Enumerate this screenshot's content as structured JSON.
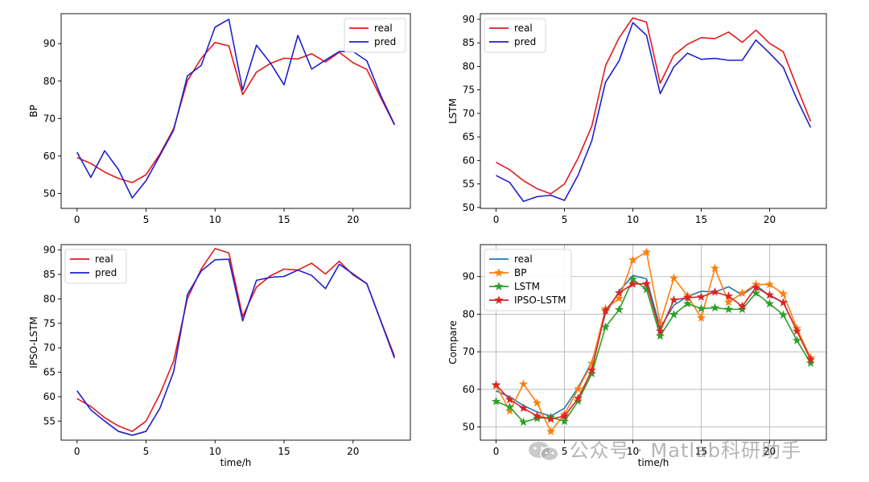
{
  "x": [
    0,
    1,
    2,
    3,
    4,
    5,
    6,
    7,
    8,
    9,
    10,
    11,
    12,
    13,
    14,
    15,
    16,
    17,
    18,
    19,
    20,
    21,
    22,
    23
  ],
  "colors": {
    "real": "#e41a1c",
    "pred": "#1f1fcf",
    "c_real": "#1f77b4",
    "c_bp": "#ff7f0e",
    "c_lstm": "#2ca02c",
    "c_ipso": "#d62728"
  },
  "xlabel": "time/h",
  "charts": [
    {
      "ylabel": "BP",
      "ylim": [
        46,
        98
      ],
      "yticks": [
        50,
        60,
        70,
        80,
        90
      ],
      "xticks": [
        0,
        5,
        10,
        15,
        20
      ],
      "legend": [
        "real",
        "pred"
      ],
      "series": [
        {
          "name": "real",
          "color_key": "real",
          "markers": false,
          "values": [
            59.6,
            58.0,
            55.7,
            54.0,
            52.9,
            55.0,
            60.5,
            67.3,
            80.1,
            86.1,
            90.3,
            89.4,
            76.4,
            82.4,
            84.7,
            86.1,
            85.9,
            87.3,
            85.1,
            87.7,
            84.9,
            83.1,
            75.6,
            68.3
          ]
        },
        {
          "name": "pred",
          "color_key": "pred",
          "markers": false,
          "values": [
            61.0,
            54.3,
            61.4,
            56.4,
            48.8,
            53.4,
            60.1,
            66.9,
            81.4,
            84.2,
            94.4,
            96.5,
            77.6,
            89.6,
            84.9,
            79.0,
            92.2,
            83.2,
            85.6,
            87.9,
            87.9,
            85.4,
            76.2,
            68.4
          ]
        }
      ]
    },
    {
      "ylabel": "LSTM",
      "ylim": [
        49.8,
        91.2
      ],
      "yticks": [
        50,
        55,
        60,
        65,
        70,
        75,
        80,
        85,
        90
      ],
      "xticks": [
        0,
        5,
        10,
        15,
        20
      ],
      "legend": [
        "real",
        "pred"
      ],
      "series": [
        {
          "name": "real",
          "color_key": "real",
          "markers": false,
          "values": [
            59.6,
            58.0,
            55.7,
            54.0,
            52.9,
            55.0,
            60.5,
            67.3,
            80.1,
            86.1,
            90.3,
            89.4,
            76.4,
            82.4,
            84.7,
            86.1,
            85.9,
            87.3,
            85.1,
            87.7,
            84.9,
            83.1,
            75.6,
            68.3
          ]
        },
        {
          "name": "pred",
          "color_key": "pred",
          "markers": false,
          "values": [
            56.8,
            55.3,
            51.3,
            52.3,
            52.6,
            51.5,
            56.9,
            64.2,
            76.6,
            81.2,
            89.3,
            86.6,
            74.2,
            79.9,
            82.8,
            81.5,
            81.7,
            81.3,
            81.3,
            85.6,
            82.8,
            79.8,
            73.0,
            67.0
          ]
        }
      ]
    },
    {
      "ylabel": "IPSO-LSTM",
      "ylim": [
        51.1,
        91.1
      ],
      "yticks": [
        55,
        60,
        65,
        70,
        75,
        80,
        85,
        90
      ],
      "xticks": [
        0,
        5,
        10,
        15,
        20
      ],
      "legend": [
        "real",
        "pred"
      ],
      "series": [
        {
          "name": "real",
          "color_key": "real",
          "markers": false,
          "values": [
            59.6,
            58.0,
            55.7,
            54.0,
            52.9,
            55.0,
            60.5,
            67.3,
            80.1,
            86.1,
            90.3,
            89.4,
            76.4,
            82.4,
            84.7,
            86.1,
            85.9,
            87.3,
            85.1,
            87.7,
            84.9,
            83.1,
            75.6,
            68.3
          ]
        },
        {
          "name": "pred",
          "color_key": "pred",
          "markers": false,
          "values": [
            61.2,
            57.3,
            55.0,
            52.9,
            52.1,
            52.9,
            57.6,
            65.1,
            80.9,
            85.7,
            88.0,
            88.1,
            75.5,
            83.8,
            84.4,
            84.6,
            85.9,
            84.8,
            82.1,
            87.1,
            85.1,
            83.1,
            75.5,
            67.9
          ]
        }
      ]
    },
    {
      "ylabel": "Compare",
      "ylim": [
        46.5,
        98.5
      ],
      "yticks": [
        50,
        60,
        70,
        80,
        90
      ],
      "xticks": [
        0,
        5,
        10,
        15,
        20
      ],
      "grid": true,
      "legend": [
        "real",
        "BP",
        "LSTM",
        "IPSO-LSTM"
      ],
      "series": [
        {
          "name": "real",
          "color_key": "c_real",
          "markers": false,
          "values": [
            59.6,
            58.0,
            55.7,
            54.0,
            52.9,
            55.0,
            60.5,
            67.3,
            80.1,
            86.1,
            90.3,
            89.4,
            76.4,
            82.4,
            84.7,
            86.1,
            85.9,
            87.3,
            85.1,
            87.7,
            84.9,
            83.1,
            75.6,
            68.3
          ]
        },
        {
          "name": "BP",
          "color_key": "c_bp",
          "markers": true,
          "values": [
            61.0,
            54.3,
            61.4,
            56.4,
            48.8,
            53.4,
            60.1,
            66.9,
            81.4,
            84.2,
            94.4,
            96.5,
            77.6,
            89.6,
            84.9,
            79.0,
            92.2,
            83.2,
            85.6,
            87.9,
            87.9,
            85.4,
            76.2,
            68.4
          ]
        },
        {
          "name": "LSTM",
          "color_key": "c_lstm",
          "markers": true,
          "values": [
            56.8,
            55.3,
            51.3,
            52.3,
            52.6,
            51.5,
            56.9,
            64.2,
            76.6,
            81.2,
            89.3,
            86.6,
            74.2,
            79.9,
            82.8,
            81.5,
            81.7,
            81.3,
            81.3,
            85.6,
            82.8,
            79.8,
            73.0,
            67.0
          ]
        },
        {
          "name": "IPSO-LSTM",
          "color_key": "c_ipso",
          "markers": true,
          "values": [
            61.2,
            57.3,
            55.0,
            52.9,
            52.1,
            52.9,
            57.6,
            65.1,
            80.9,
            85.7,
            88.0,
            88.1,
            75.5,
            83.8,
            84.4,
            84.6,
            85.9,
            84.8,
            82.1,
            87.1,
            85.1,
            83.1,
            75.5,
            67.9
          ]
        }
      ]
    }
  ],
  "watermark": "公众号 · Matlab科研助手",
  "chart_data": [
    {
      "type": "line",
      "title": "",
      "xlabel": "",
      "ylabel": "BP",
      "ylim": [
        46,
        98
      ],
      "x": [
        0,
        1,
        2,
        3,
        4,
        5,
        6,
        7,
        8,
        9,
        10,
        11,
        12,
        13,
        14,
        15,
        16,
        17,
        18,
        19,
        20,
        21,
        22,
        23
      ],
      "series": [
        {
          "name": "real",
          "values": [
            59.6,
            58.0,
            55.7,
            54.0,
            52.9,
            55.0,
            60.5,
            67.3,
            80.1,
            86.1,
            90.3,
            89.4,
            76.4,
            82.4,
            84.7,
            86.1,
            85.9,
            87.3,
            85.1,
            87.7,
            84.9,
            83.1,
            75.6,
            68.3
          ]
        },
        {
          "name": "pred",
          "values": [
            61.0,
            54.3,
            61.4,
            56.4,
            48.8,
            53.4,
            60.1,
            66.9,
            81.4,
            84.2,
            94.4,
            96.5,
            77.6,
            89.6,
            84.9,
            79.0,
            92.2,
            83.2,
            85.6,
            87.9,
            87.9,
            85.4,
            76.2,
            68.4
          ]
        }
      ]
    },
    {
      "type": "line",
      "title": "",
      "xlabel": "",
      "ylabel": "LSTM",
      "ylim": [
        49.8,
        91.2
      ],
      "x": [
        0,
        1,
        2,
        3,
        4,
        5,
        6,
        7,
        8,
        9,
        10,
        11,
        12,
        13,
        14,
        15,
        16,
        17,
        18,
        19,
        20,
        21,
        22,
        23
      ],
      "series": [
        {
          "name": "real",
          "values": [
            59.6,
            58.0,
            55.7,
            54.0,
            52.9,
            55.0,
            60.5,
            67.3,
            80.1,
            86.1,
            90.3,
            89.4,
            76.4,
            82.4,
            84.7,
            86.1,
            85.9,
            87.3,
            85.1,
            87.7,
            84.9,
            83.1,
            75.6,
            68.3
          ]
        },
        {
          "name": "pred",
          "values": [
            56.8,
            55.3,
            51.3,
            52.3,
            52.6,
            51.5,
            56.9,
            64.2,
            76.6,
            81.2,
            89.3,
            86.6,
            74.2,
            79.9,
            82.8,
            81.5,
            81.7,
            81.3,
            81.3,
            85.6,
            82.8,
            79.8,
            73.0,
            67.0
          ]
        }
      ]
    },
    {
      "type": "line",
      "title": "",
      "xlabel": "time/h",
      "ylabel": "IPSO-LSTM",
      "ylim": [
        51.1,
        91.1
      ],
      "x": [
        0,
        1,
        2,
        3,
        4,
        5,
        6,
        7,
        8,
        9,
        10,
        11,
        12,
        13,
        14,
        15,
        16,
        17,
        18,
        19,
        20,
        21,
        22,
        23
      ],
      "series": [
        {
          "name": "real",
          "values": [
            59.6,
            58.0,
            55.7,
            54.0,
            52.9,
            55.0,
            60.5,
            67.3,
            80.1,
            86.1,
            90.3,
            89.4,
            76.4,
            82.4,
            84.7,
            86.1,
            85.9,
            87.3,
            85.1,
            87.7,
            84.9,
            83.1,
            75.6,
            68.3
          ]
        },
        {
          "name": "pred",
          "values": [
            61.2,
            57.3,
            55.0,
            52.9,
            52.1,
            52.9,
            57.6,
            65.1,
            80.9,
            85.7,
            88.0,
            88.1,
            75.5,
            83.8,
            84.4,
            84.6,
            85.9,
            84.8,
            82.1,
            87.1,
            85.1,
            83.1,
            75.5,
            67.9
          ]
        }
      ]
    },
    {
      "type": "line",
      "title": "",
      "xlabel": "time/h",
      "ylabel": "Compare",
      "ylim": [
        46.5,
        98.5
      ],
      "grid": true,
      "x": [
        0,
        1,
        2,
        3,
        4,
        5,
        6,
        7,
        8,
        9,
        10,
        11,
        12,
        13,
        14,
        15,
        16,
        17,
        18,
        19,
        20,
        21,
        22,
        23
      ],
      "series": [
        {
          "name": "real",
          "values": [
            59.6,
            58.0,
            55.7,
            54.0,
            52.9,
            55.0,
            60.5,
            67.3,
            80.1,
            86.1,
            90.3,
            89.4,
            76.4,
            82.4,
            84.7,
            86.1,
            85.9,
            87.3,
            85.1,
            87.7,
            84.9,
            83.1,
            75.6,
            68.3
          ]
        },
        {
          "name": "BP",
          "values": [
            61.0,
            54.3,
            61.4,
            56.4,
            48.8,
            53.4,
            60.1,
            66.9,
            81.4,
            84.2,
            94.4,
            96.5,
            77.6,
            89.6,
            84.9,
            79.0,
            92.2,
            83.2,
            85.6,
            87.9,
            87.9,
            85.4,
            76.2,
            68.4
          ]
        },
        {
          "name": "LSTM",
          "values": [
            56.8,
            55.3,
            51.3,
            52.3,
            52.6,
            51.5,
            56.9,
            64.2,
            76.6,
            81.2,
            89.3,
            86.6,
            74.2,
            79.9,
            82.8,
            81.5,
            81.7,
            81.3,
            81.3,
            85.6,
            82.8,
            79.8,
            73.0,
            67.0
          ]
        },
        {
          "name": "IPSO-LSTM",
          "values": [
            61.2,
            57.3,
            55.0,
            52.9,
            52.1,
            52.9,
            57.6,
            65.1,
            80.9,
            85.7,
            88.0,
            88.1,
            75.5,
            83.8,
            84.4,
            84.6,
            85.9,
            84.8,
            82.1,
            87.1,
            85.1,
            83.1,
            75.5,
            67.9
          ]
        }
      ]
    }
  ]
}
